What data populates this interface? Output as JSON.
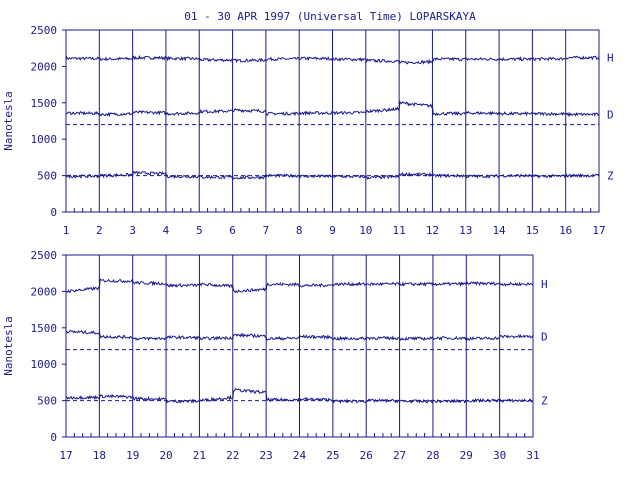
{
  "title": "01 - 30 APR 1997 (Universal Time) LOPARSKAYA",
  "colors": {
    "ink": "#1a1a8c",
    "background": "#ffffff"
  },
  "chart_data": [
    {
      "type": "line",
      "panel": "days 1-17",
      "ylabel": "Nanotesla",
      "ylim": [
        0,
        2500
      ],
      "y_ticks": [
        0,
        500,
        1000,
        1500,
        2000,
        2500
      ],
      "xlim": [
        1,
        17
      ],
      "x_ticks": [
        1,
        2,
        3,
        4,
        5,
        6,
        7,
        8,
        9,
        10,
        11,
        12,
        13,
        14,
        15,
        16,
        17
      ],
      "grid": "vertical lines at each day",
      "baselines": [
        1200,
        500
      ],
      "series": [
        {
          "name": "H",
          "values": [
            2110,
            2100,
            2120,
            2110,
            2090,
            2080,
            2100,
            2110,
            2100,
            2080,
            2050,
            2100,
            2100,
            2100,
            2100,
            2120
          ]
        },
        {
          "name": "D",
          "values": [
            1360,
            1340,
            1370,
            1350,
            1380,
            1400,
            1350,
            1360,
            1360,
            1380,
            1500,
            1350,
            1360,
            1350,
            1350,
            1340
          ]
        },
        {
          "name": "Z",
          "values": [
            490,
            500,
            540,
            490,
            480,
            470,
            500,
            490,
            490,
            470,
            520,
            500,
            490,
            500,
            490,
            500
          ]
        }
      ]
    },
    {
      "type": "line",
      "panel": "days 17-31",
      "ylabel": "Nanotesla",
      "ylim": [
        0,
        2500
      ],
      "y_ticks": [
        0,
        500,
        1000,
        1500,
        2000,
        2500
      ],
      "xlim": [
        17,
        31
      ],
      "x_ticks": [
        17,
        18,
        19,
        20,
        21,
        22,
        23,
        24,
        25,
        26,
        27,
        28,
        29,
        30,
        31
      ],
      "grid": "vertical lines at each day",
      "baselines": [
        1200,
        500
      ],
      "series": [
        {
          "name": "H",
          "values": [
            2000,
            2150,
            2120,
            2080,
            2100,
            2000,
            2100,
            2080,
            2100,
            2100,
            2100,
            2100,
            2110,
            2100
          ]
        },
        {
          "name": "D",
          "values": [
            1450,
            1380,
            1350,
            1370,
            1350,
            1400,
            1350,
            1380,
            1350,
            1360,
            1350,
            1360,
            1350,
            1380
          ]
        },
        {
          "name": "Z",
          "values": [
            540,
            560,
            530,
            490,
            500,
            650,
            510,
            520,
            490,
            500,
            490,
            490,
            500,
            500
          ]
        }
      ]
    }
  ]
}
